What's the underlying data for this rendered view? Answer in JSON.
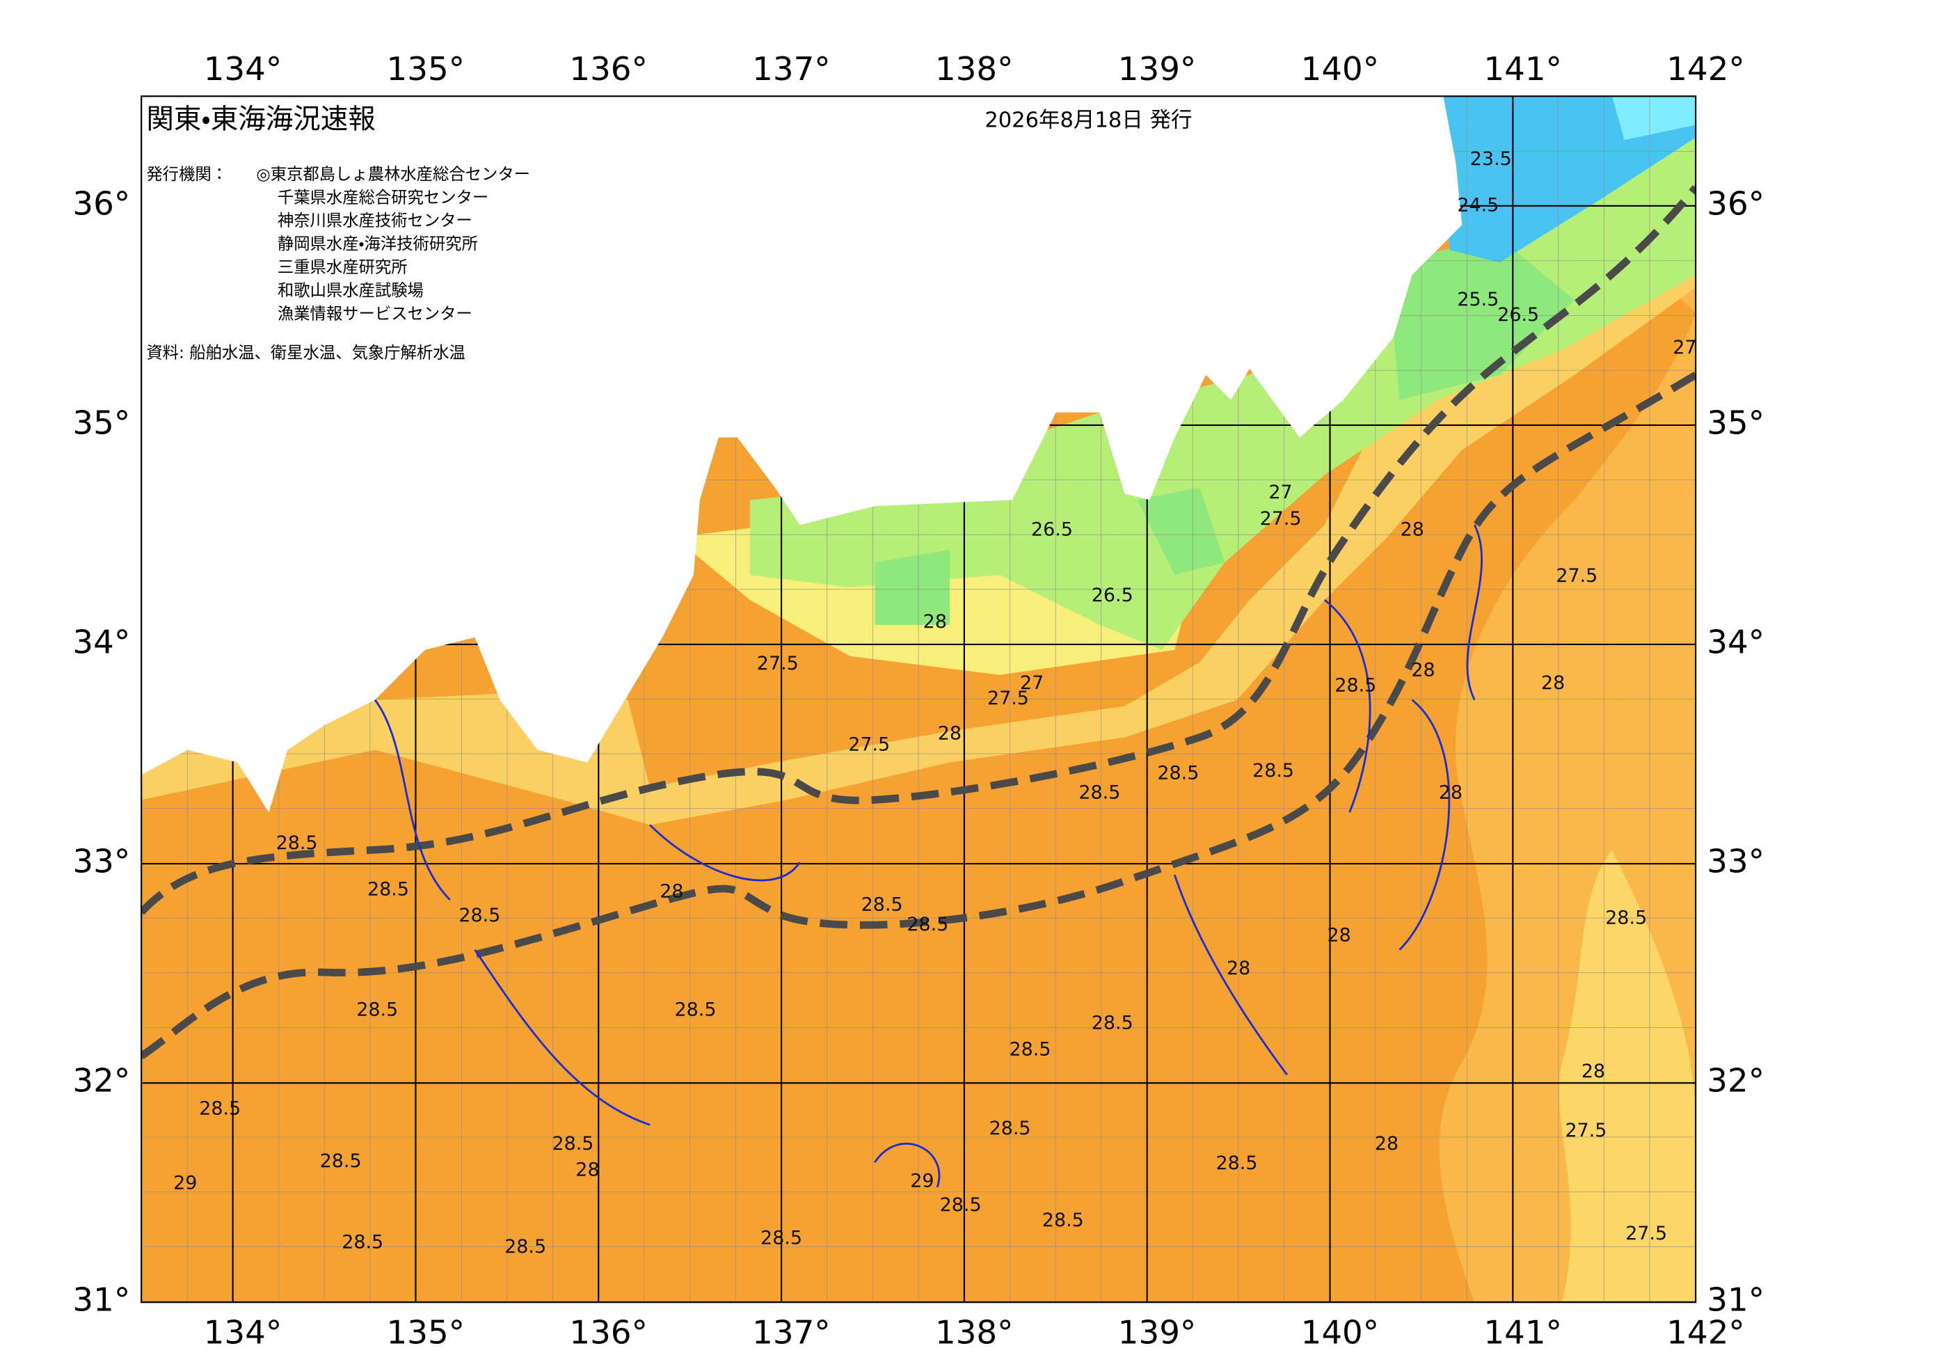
{
  "header": {
    "title": "関東・東海海況速報",
    "issue_date": "2026年8月18日 発行"
  },
  "publisher": {
    "label": "発行機関：",
    "organizations": [
      "◎東京都島しょ農林水産総合センター",
      "千葉県水産総合研究センター",
      "神奈川県水産技術センター",
      "静岡県水産・海洋技術研究所",
      "三重県水産研究所",
      "和歌山県水産試験場",
      "漁業情報サービスセンター"
    ]
  },
  "sources": "資料: 船舶水温、衛星水温、気象庁解析水温",
  "chart_data": {
    "type": "map",
    "xlim": [
      133.5,
      142
    ],
    "ylim": [
      31,
      36.5
    ],
    "xticks": [
      {
        "value": 134,
        "label": "134°"
      },
      {
        "value": 135,
        "label": "135°"
      },
      {
        "value": 136,
        "label": "136°"
      },
      {
        "value": 137,
        "label": "137°"
      },
      {
        "value": 138,
        "label": "138°"
      },
      {
        "value": 139,
        "label": "139°"
      },
      {
        "value": 140,
        "label": "140°"
      },
      {
        "value": 141,
        "label": "141°"
      },
      {
        "value": 142,
        "label": "142°"
      }
    ],
    "yticks": [
      {
        "value": 31,
        "label": "31°"
      },
      {
        "value": 32,
        "label": "32°"
      },
      {
        "value": 33,
        "label": "33°"
      },
      {
        "value": 34,
        "label": "34°"
      },
      {
        "value": 35,
        "label": "35°"
      },
      {
        "value": 36,
        "label": "36°"
      }
    ],
    "contour_labels": [
      {
        "value": 23.5,
        "lon": 140.88,
        "lat": 36.21
      },
      {
        "value": 24.5,
        "lon": 140.81,
        "lat": 36.0
      },
      {
        "value": 25.5,
        "lon": 140.81,
        "lat": 35.57
      },
      {
        "value": 26.5,
        "lon": 141.03,
        "lat": 35.5
      },
      {
        "value": 27,
        "lon": 141.94,
        "lat": 35.35
      },
      {
        "value": 27,
        "lon": 139.73,
        "lat": 34.69
      },
      {
        "value": 27.5,
        "lon": 139.73,
        "lat": 34.57
      },
      {
        "value": 26.5,
        "lon": 138.48,
        "lat": 34.52
      },
      {
        "value": 26.5,
        "lon": 138.81,
        "lat": 34.22
      },
      {
        "value": 28,
        "lon": 137.84,
        "lat": 34.1
      },
      {
        "value": 27.5,
        "lon": 136.98,
        "lat": 33.91
      },
      {
        "value": 27,
        "lon": 138.37,
        "lat": 33.82
      },
      {
        "value": 27.5,
        "lon": 138.24,
        "lat": 33.75
      },
      {
        "value": 27.5,
        "lon": 137.48,
        "lat": 33.54
      },
      {
        "value": 28,
        "lon": 137.92,
        "lat": 33.59
      },
      {
        "value": 28,
        "lon": 140.45,
        "lat": 34.52
      },
      {
        "value": 27.5,
        "lon": 141.35,
        "lat": 34.31
      },
      {
        "value": 28.5,
        "lon": 140.14,
        "lat": 33.81
      },
      {
        "value": 28,
        "lon": 140.51,
        "lat": 33.88
      },
      {
        "value": 28.5,
        "lon": 139.17,
        "lat": 33.41
      },
      {
        "value": 28.5,
        "lon": 138.74,
        "lat": 33.32
      },
      {
        "value": 28.5,
        "lon": 139.69,
        "lat": 33.42
      },
      {
        "value": 28.5,
        "lon": 134.35,
        "lat": 33.09
      },
      {
        "value": 28.5,
        "lon": 134.85,
        "lat": 32.88
      },
      {
        "value": 28.5,
        "lon": 135.35,
        "lat": 32.76
      },
      {
        "value": 28.5,
        "lon": 134.79,
        "lat": 32.33
      },
      {
        "value": 28.5,
        "lon": 133.93,
        "lat": 31.88
      },
      {
        "value": 28.5,
        "lon": 134.59,
        "lat": 31.64
      },
      {
        "value": 28.5,
        "lon": 134.71,
        "lat": 31.27
      },
      {
        "value": 28.5,
        "lon": 135.6,
        "lat": 31.25
      },
      {
        "value": 28.5,
        "lon": 137.0,
        "lat": 31.29
      },
      {
        "value": 28.5,
        "lon": 136.53,
        "lat": 32.33
      },
      {
        "value": 28.5,
        "lon": 137.55,
        "lat": 32.81
      },
      {
        "value": 28.5,
        "lon": 137.8,
        "lat": 32.72
      },
      {
        "value": 28.5,
        "lon": 138.36,
        "lat": 32.15
      },
      {
        "value": 28.5,
        "lon": 138.81,
        "lat": 32.27
      },
      {
        "value": 28.5,
        "lon": 138.25,
        "lat": 31.79
      },
      {
        "value": 28.5,
        "lon": 137.98,
        "lat": 31.44
      },
      {
        "value": 28.5,
        "lon": 138.54,
        "lat": 31.37
      },
      {
        "value": 28.5,
        "lon": 139.49,
        "lat": 31.63
      },
      {
        "value": 28.5,
        "lon": 141.62,
        "lat": 32.75
      },
      {
        "value": 29,
        "lon": 137.77,
        "lat": 31.55
      },
      {
        "value": 29,
        "lon": 133.74,
        "lat": 31.54
      },
      {
        "value": 28,
        "lon": 139.5,
        "lat": 32.52
      },
      {
        "value": 28,
        "lon": 140.05,
        "lat": 32.67
      },
      {
        "value": 28,
        "lon": 141.44,
        "lat": 32.05
      },
      {
        "value": 28,
        "lon": 140.31,
        "lat": 31.72
      },
      {
        "value": 28,
        "lon": 135.94,
        "lat": 31.6
      },
      {
        "value": 28,
        "lon": 136.4,
        "lat": 32.87
      },
      {
        "value": 27.5,
        "lon": 141.4,
        "lat": 31.78
      },
      {
        "value": 27.5,
        "lon": 141.73,
        "lat": 31.31
      },
      {
        "value": 28,
        "lon": 141.22,
        "lat": 33.82
      },
      {
        "value": 28,
        "lon": 140.66,
        "lat": 33.32
      },
      {
        "value": 28.5,
        "lon": 135.86,
        "lat": 31.72
      }
    ]
  }
}
